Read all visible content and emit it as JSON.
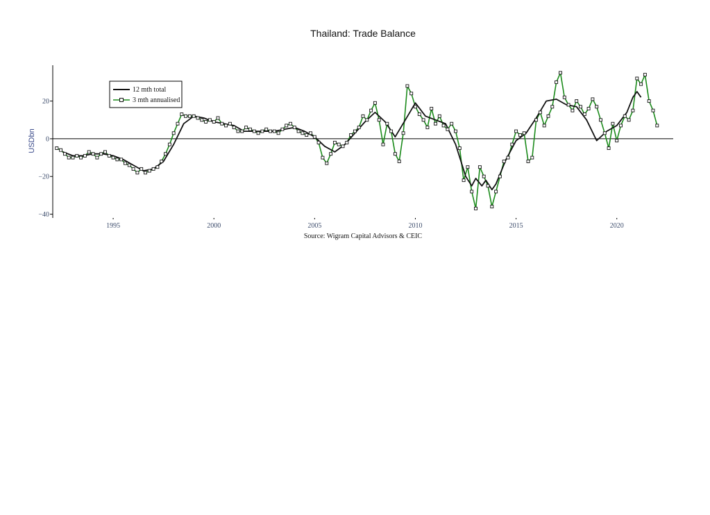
{
  "chart_data": {
    "type": "line",
    "title": "Thailand: Trade Balance",
    "ylabel": "USDbn",
    "source": "Source: Wigram Capital Advisors & CEIC",
    "xlim": [
      1992.0,
      2022.8
    ],
    "ylim": [
      -42,
      39
    ],
    "yticks": [
      -40,
      -20,
      0,
      20
    ],
    "xticks": [
      1995,
      2000,
      2005,
      2010,
      2015,
      2020
    ],
    "legend": "top-left",
    "colors": {
      "total": "#111111",
      "annualised": "#1a8a1a",
      "marker_fill": "#ffffff",
      "axis": "#000000"
    },
    "series": [
      {
        "name": "12 mth total",
        "points": [
          [
            1992.5,
            -7
          ],
          [
            1993.0,
            -9
          ],
          [
            1993.5,
            -9
          ],
          [
            1994.0,
            -8
          ],
          [
            1994.5,
            -8
          ],
          [
            1995.0,
            -9
          ],
          [
            1995.5,
            -11
          ],
          [
            1996.0,
            -14
          ],
          [
            1996.5,
            -17
          ],
          [
            1997.0,
            -16
          ],
          [
            1997.5,
            -12
          ],
          [
            1998.0,
            -3
          ],
          [
            1998.5,
            8
          ],
          [
            1999.0,
            12
          ],
          [
            1999.5,
            11
          ],
          [
            2000.0,
            9
          ],
          [
            2000.5,
            8
          ],
          [
            2001.0,
            7
          ],
          [
            2001.5,
            4
          ],
          [
            2002.0,
            4
          ],
          [
            2002.5,
            4
          ],
          [
            2003.0,
            4
          ],
          [
            2003.5,
            5
          ],
          [
            2004.0,
            6
          ],
          [
            2004.5,
            4
          ],
          [
            2005.0,
            1
          ],
          [
            2005.5,
            -4
          ],
          [
            2006.0,
            -7
          ],
          [
            2006.5,
            -3
          ],
          [
            2007.0,
            3
          ],
          [
            2007.5,
            9
          ],
          [
            2008.0,
            14
          ],
          [
            2008.5,
            9
          ],
          [
            2009.0,
            1
          ],
          [
            2009.5,
            10
          ],
          [
            2010.0,
            19
          ],
          [
            2010.5,
            12
          ],
          [
            2011.0,
            10
          ],
          [
            2011.5,
            8
          ],
          [
            2012.0,
            -3
          ],
          [
            2012.5,
            -20
          ],
          [
            2012.8,
            -25
          ],
          [
            2013.0,
            -21
          ],
          [
            2013.3,
            -25
          ],
          [
            2013.5,
            -22
          ],
          [
            2013.8,
            -27
          ],
          [
            2014.0,
            -24
          ],
          [
            2014.5,
            -11
          ],
          [
            2015.0,
            -1
          ],
          [
            2015.5,
            3
          ],
          [
            2016.0,
            11
          ],
          [
            2016.5,
            20
          ],
          [
            2017.0,
            21
          ],
          [
            2017.5,
            18
          ],
          [
            2018.0,
            17
          ],
          [
            2018.5,
            10
          ],
          [
            2019.0,
            -1
          ],
          [
            2019.5,
            4
          ],
          [
            2020.0,
            7
          ],
          [
            2020.5,
            14
          ],
          [
            2020.8,
            22
          ],
          [
            2021.0,
            25
          ],
          [
            2021.2,
            22
          ]
        ]
      },
      {
        "name": "3 mth annualised",
        "points": [
          [
            1992.2,
            -5
          ],
          [
            1992.4,
            -6
          ],
          [
            1992.6,
            -8
          ],
          [
            1992.8,
            -10
          ],
          [
            1993.0,
            -10
          ],
          [
            1993.2,
            -9
          ],
          [
            1993.4,
            -10
          ],
          [
            1993.6,
            -9
          ],
          [
            1993.8,
            -7
          ],
          [
            1994.0,
            -8
          ],
          [
            1994.2,
            -10
          ],
          [
            1994.4,
            -8
          ],
          [
            1994.6,
            -7
          ],
          [
            1994.8,
            -9
          ],
          [
            1995.0,
            -10
          ],
          [
            1995.2,
            -11
          ],
          [
            1995.4,
            -11
          ],
          [
            1995.6,
            -13
          ],
          [
            1995.8,
            -14
          ],
          [
            1996.0,
            -16
          ],
          [
            1996.2,
            -18
          ],
          [
            1996.4,
            -16
          ],
          [
            1996.6,
            -18
          ],
          [
            1996.8,
            -17
          ],
          [
            1997.0,
            -16
          ],
          [
            1997.2,
            -15
          ],
          [
            1997.4,
            -12
          ],
          [
            1997.6,
            -8
          ],
          [
            1997.8,
            -3
          ],
          [
            1998.0,
            3
          ],
          [
            1998.2,
            8
          ],
          [
            1998.4,
            13
          ],
          [
            1998.6,
            12
          ],
          [
            1998.8,
            12
          ],
          [
            1999.0,
            12
          ],
          [
            1999.2,
            11
          ],
          [
            1999.4,
            10
          ],
          [
            1999.6,
            9
          ],
          [
            1999.8,
            10
          ],
          [
            2000.0,
            9
          ],
          [
            2000.2,
            11
          ],
          [
            2000.4,
            8
          ],
          [
            2000.6,
            7
          ],
          [
            2000.8,
            8
          ],
          [
            2001.0,
            6
          ],
          [
            2001.2,
            4
          ],
          [
            2001.4,
            4
          ],
          [
            2001.6,
            6
          ],
          [
            2001.8,
            5
          ],
          [
            2002.0,
            4
          ],
          [
            2002.2,
            3
          ],
          [
            2002.4,
            4
          ],
          [
            2002.6,
            5
          ],
          [
            2002.8,
            4
          ],
          [
            2003.0,
            4
          ],
          [
            2003.2,
            3
          ],
          [
            2003.4,
            5
          ],
          [
            2003.6,
            7
          ],
          [
            2003.8,
            8
          ],
          [
            2004.0,
            6
          ],
          [
            2004.2,
            4
          ],
          [
            2004.4,
            3
          ],
          [
            2004.6,
            2
          ],
          [
            2004.8,
            3
          ],
          [
            2005.0,
            1
          ],
          [
            2005.2,
            -2
          ],
          [
            2005.4,
            -10
          ],
          [
            2005.6,
            -13
          ],
          [
            2005.8,
            -8
          ],
          [
            2006.0,
            -2
          ],
          [
            2006.2,
            -3
          ],
          [
            2006.4,
            -4
          ],
          [
            2006.6,
            -2
          ],
          [
            2006.8,
            2
          ],
          [
            2007.0,
            4
          ],
          [
            2007.2,
            6
          ],
          [
            2007.4,
            12
          ],
          [
            2007.6,
            10
          ],
          [
            2007.8,
            15
          ],
          [
            2008.0,
            19
          ],
          [
            2008.2,
            10
          ],
          [
            2008.4,
            -3
          ],
          [
            2008.6,
            8
          ],
          [
            2008.8,
            4
          ],
          [
            2009.0,
            -8
          ],
          [
            2009.2,
            -12
          ],
          [
            2009.4,
            3
          ],
          [
            2009.6,
            28
          ],
          [
            2009.8,
            24
          ],
          [
            2010.0,
            17
          ],
          [
            2010.2,
            13
          ],
          [
            2010.4,
            10
          ],
          [
            2010.6,
            6
          ],
          [
            2010.8,
            16
          ],
          [
            2011.0,
            8
          ],
          [
            2011.2,
            12
          ],
          [
            2011.4,
            7
          ],
          [
            2011.6,
            5
          ],
          [
            2011.8,
            8
          ],
          [
            2012.0,
            4
          ],
          [
            2012.2,
            -5
          ],
          [
            2012.4,
            -22
          ],
          [
            2012.6,
            -15
          ],
          [
            2012.8,
            -28
          ],
          [
            2013.0,
            -37
          ],
          [
            2013.2,
            -15
          ],
          [
            2013.4,
            -20
          ],
          [
            2013.6,
            -25
          ],
          [
            2013.8,
            -36
          ],
          [
            2014.0,
            -28
          ],
          [
            2014.2,
            -20
          ],
          [
            2014.4,
            -12
          ],
          [
            2014.6,
            -10
          ],
          [
            2014.8,
            -3
          ],
          [
            2015.0,
            4
          ],
          [
            2015.2,
            2
          ],
          [
            2015.4,
            3
          ],
          [
            2015.6,
            -12
          ],
          [
            2015.8,
            -10
          ],
          [
            2016.0,
            10
          ],
          [
            2016.2,
            14
          ],
          [
            2016.4,
            7
          ],
          [
            2016.6,
            12
          ],
          [
            2016.8,
            17
          ],
          [
            2017.0,
            30
          ],
          [
            2017.2,
            35
          ],
          [
            2017.4,
            22
          ],
          [
            2017.6,
            18
          ],
          [
            2017.8,
            15
          ],
          [
            2018.0,
            20
          ],
          [
            2018.2,
            17
          ],
          [
            2018.4,
            13
          ],
          [
            2018.6,
            16
          ],
          [
            2018.8,
            21
          ],
          [
            2019.0,
            17
          ],
          [
            2019.2,
            10
          ],
          [
            2019.4,
            3
          ],
          [
            2019.6,
            -5
          ],
          [
            2019.8,
            8
          ],
          [
            2020.0,
            -1
          ],
          [
            2020.2,
            7
          ],
          [
            2020.4,
            12
          ],
          [
            2020.6,
            10
          ],
          [
            2020.8,
            15
          ],
          [
            2021.0,
            32
          ],
          [
            2021.2,
            29
          ],
          [
            2021.4,
            34
          ],
          [
            2021.6,
            20
          ],
          [
            2021.8,
            15
          ],
          [
            2022.0,
            7
          ]
        ]
      }
    ]
  }
}
